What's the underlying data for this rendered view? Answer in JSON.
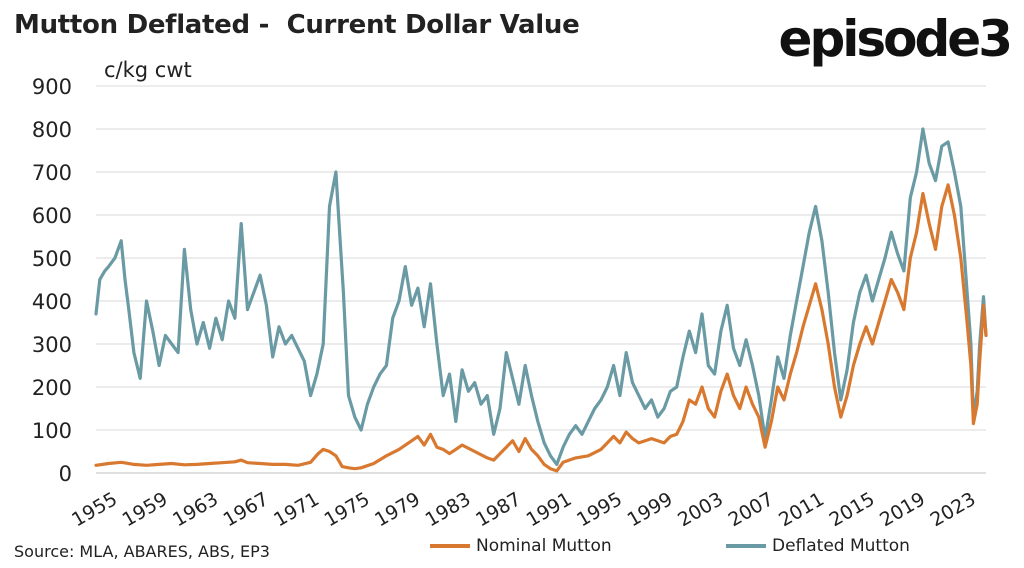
{
  "header": {
    "title": "Mutton Deflated -  Current Dollar Value",
    "logo_text": "episode3"
  },
  "footer": {
    "source": "Source: MLA, ABARES, ABS, EP3"
  },
  "colors": {
    "nominal": "#d9792f",
    "deflated": "#6a9aa4",
    "grid": "#d9d9d9",
    "text": "#222222"
  },
  "chart_data": {
    "type": "line",
    "ylabel": "c/kg cwt",
    "ylim": [
      0,
      900
    ],
    "yticks": [
      0,
      100,
      200,
      300,
      400,
      500,
      600,
      700,
      800,
      900
    ],
    "xlim": [
      1955,
      2025.5
    ],
    "xticks": [
      1955,
      1959,
      1963,
      1967,
      1971,
      1975,
      1979,
      1983,
      1987,
      1991,
      1995,
      1999,
      2003,
      2007,
      2011,
      2015,
      2019,
      2023
    ],
    "grid": "horizontal",
    "legend_position": "bottom",
    "series": [
      {
        "name": "Nominal Mutton",
        "color": "#d9792f",
        "points": [
          [
            1955.0,
            18
          ],
          [
            1956.0,
            22
          ],
          [
            1957.0,
            25
          ],
          [
            1958.0,
            20
          ],
          [
            1959.0,
            18
          ],
          [
            1960.0,
            20
          ],
          [
            1961.0,
            22
          ],
          [
            1962.0,
            19
          ],
          [
            1963.0,
            20
          ],
          [
            1964.0,
            22
          ],
          [
            1965.0,
            24
          ],
          [
            1966.0,
            26
          ],
          [
            1966.5,
            30
          ],
          [
            1967.0,
            24
          ],
          [
            1968.0,
            22
          ],
          [
            1969.0,
            20
          ],
          [
            1970.0,
            20
          ],
          [
            1971.0,
            18
          ],
          [
            1972.0,
            25
          ],
          [
            1972.6,
            45
          ],
          [
            1973.0,
            55
          ],
          [
            1973.5,
            50
          ],
          [
            1974.0,
            40
          ],
          [
            1974.5,
            15
          ],
          [
            1975.0,
            12
          ],
          [
            1975.5,
            10
          ],
          [
            1976.0,
            12
          ],
          [
            1977.0,
            22
          ],
          [
            1978.0,
            40
          ],
          [
            1979.0,
            55
          ],
          [
            1980.0,
            75
          ],
          [
            1980.5,
            85
          ],
          [
            1981.0,
            65
          ],
          [
            1981.5,
            90
          ],
          [
            1982.0,
            60
          ],
          [
            1982.5,
            55
          ],
          [
            1983.0,
            45
          ],
          [
            1983.5,
            55
          ],
          [
            1984.0,
            65
          ],
          [
            1985.0,
            50
          ],
          [
            1986.0,
            35
          ],
          [
            1986.5,
            30
          ],
          [
            1987.0,
            45
          ],
          [
            1987.5,
            60
          ],
          [
            1988.0,
            75
          ],
          [
            1988.5,
            50
          ],
          [
            1989.0,
            80
          ],
          [
            1989.5,
            55
          ],
          [
            1990.0,
            40
          ],
          [
            1990.5,
            20
          ],
          [
            1991.0,
            10
          ],
          [
            1991.5,
            5
          ],
          [
            1992.0,
            25
          ],
          [
            1993.0,
            35
          ],
          [
            1994.0,
            40
          ],
          [
            1995.0,
            55
          ],
          [
            1996.0,
            85
          ],
          [
            1996.5,
            70
          ],
          [
            1997.0,
            95
          ],
          [
            1997.5,
            80
          ],
          [
            1998.0,
            70
          ],
          [
            1999.0,
            80
          ],
          [
            2000.0,
            70
          ],
          [
            2000.5,
            85
          ],
          [
            2001.0,
            90
          ],
          [
            2001.5,
            120
          ],
          [
            2002.0,
            170
          ],
          [
            2002.5,
            160
          ],
          [
            2003.0,
            200
          ],
          [
            2003.5,
            150
          ],
          [
            2004.0,
            130
          ],
          [
            2004.5,
            190
          ],
          [
            2005.0,
            230
          ],
          [
            2005.5,
            180
          ],
          [
            2006.0,
            150
          ],
          [
            2006.5,
            200
          ],
          [
            2007.0,
            160
          ],
          [
            2007.5,
            130
          ],
          [
            2008.0,
            60
          ],
          [
            2008.5,
            120
          ],
          [
            2009.0,
            200
          ],
          [
            2009.5,
            170
          ],
          [
            2010.0,
            230
          ],
          [
            2010.5,
            280
          ],
          [
            2011.0,
            340
          ],
          [
            2011.5,
            390
          ],
          [
            2012.0,
            440
          ],
          [
            2012.5,
            380
          ],
          [
            2013.0,
            300
          ],
          [
            2013.5,
            200
          ],
          [
            2014.0,
            130
          ],
          [
            2014.5,
            180
          ],
          [
            2015.0,
            250
          ],
          [
            2015.5,
            300
          ],
          [
            2016.0,
            340
          ],
          [
            2016.5,
            300
          ],
          [
            2017.0,
            350
          ],
          [
            2017.5,
            400
          ],
          [
            2018.0,
            450
          ],
          [
            2018.5,
            420
          ],
          [
            2019.0,
            380
          ],
          [
            2019.5,
            500
          ],
          [
            2020.0,
            560
          ],
          [
            2020.5,
            650
          ],
          [
            2021.0,
            580
          ],
          [
            2021.5,
            520
          ],
          [
            2022.0,
            620
          ],
          [
            2022.5,
            670
          ],
          [
            2023.0,
            600
          ],
          [
            2023.5,
            500
          ],
          [
            2024.0,
            350
          ],
          [
            2024.3,
            250
          ],
          [
            2024.5,
            115
          ],
          [
            2024.8,
            160
          ],
          [
            2025.0,
            260
          ],
          [
            2025.3,
            390
          ],
          [
            2025.5,
            320
          ]
        ]
      },
      {
        "name": "Deflated Mutton",
        "color": "#6a9aa4",
        "points": [
          [
            1955.0,
            370
          ],
          [
            1955.3,
            450
          ],
          [
            1955.7,
            470
          ],
          [
            1956.0,
            480
          ],
          [
            1956.5,
            500
          ],
          [
            1957.0,
            540
          ],
          [
            1957.3,
            450
          ],
          [
            1957.6,
            380
          ],
          [
            1958.0,
            280
          ],
          [
            1958.5,
            220
          ],
          [
            1959.0,
            400
          ],
          [
            1959.5,
            330
          ],
          [
            1960.0,
            250
          ],
          [
            1960.5,
            320
          ],
          [
            1961.0,
            300
          ],
          [
            1961.5,
            280
          ],
          [
            1962.0,
            520
          ],
          [
            1962.5,
            380
          ],
          [
            1963.0,
            300
          ],
          [
            1963.5,
            350
          ],
          [
            1964.0,
            290
          ],
          [
            1964.5,
            360
          ],
          [
            1965.0,
            310
          ],
          [
            1965.5,
            400
          ],
          [
            1966.0,
            360
          ],
          [
            1966.5,
            580
          ],
          [
            1967.0,
            380
          ],
          [
            1967.5,
            420
          ],
          [
            1968.0,
            460
          ],
          [
            1968.5,
            390
          ],
          [
            1969.0,
            270
          ],
          [
            1969.5,
            340
          ],
          [
            1970.0,
            300
          ],
          [
            1970.5,
            320
          ],
          [
            1971.0,
            290
          ],
          [
            1971.5,
            260
          ],
          [
            1972.0,
            180
          ],
          [
            1972.5,
            230
          ],
          [
            1973.0,
            300
          ],
          [
            1973.5,
            620
          ],
          [
            1974.0,
            700
          ],
          [
            1974.3,
            560
          ],
          [
            1974.6,
            420
          ],
          [
            1975.0,
            180
          ],
          [
            1975.5,
            130
          ],
          [
            1976.0,
            100
          ],
          [
            1976.5,
            160
          ],
          [
            1977.0,
            200
          ],
          [
            1977.5,
            230
          ],
          [
            1978.0,
            250
          ],
          [
            1978.5,
            360
          ],
          [
            1979.0,
            400
          ],
          [
            1979.5,
            480
          ],
          [
            1980.0,
            390
          ],
          [
            1980.5,
            430
          ],
          [
            1981.0,
            340
          ],
          [
            1981.5,
            440
          ],
          [
            1982.0,
            300
          ],
          [
            1982.5,
            180
          ],
          [
            1983.0,
            230
          ],
          [
            1983.5,
            120
          ],
          [
            1984.0,
            240
          ],
          [
            1984.5,
            190
          ],
          [
            1985.0,
            210
          ],
          [
            1985.5,
            160
          ],
          [
            1986.0,
            180
          ],
          [
            1986.5,
            90
          ],
          [
            1987.0,
            150
          ],
          [
            1987.5,
            280
          ],
          [
            1988.0,
            220
          ],
          [
            1988.5,
            160
          ],
          [
            1989.0,
            250
          ],
          [
            1989.5,
            180
          ],
          [
            1990.0,
            120
          ],
          [
            1990.5,
            70
          ],
          [
            1991.0,
            40
          ],
          [
            1991.5,
            20
          ],
          [
            1992.0,
            60
          ],
          [
            1992.5,
            90
          ],
          [
            1993.0,
            110
          ],
          [
            1993.5,
            90
          ],
          [
            1994.0,
            120
          ],
          [
            1994.5,
            150
          ],
          [
            1995.0,
            170
          ],
          [
            1995.5,
            200
          ],
          [
            1996.0,
            250
          ],
          [
            1996.5,
            180
          ],
          [
            1997.0,
            280
          ],
          [
            1997.5,
            210
          ],
          [
            1998.0,
            180
          ],
          [
            1998.5,
            150
          ],
          [
            1999.0,
            170
          ],
          [
            1999.5,
            130
          ],
          [
            2000.0,
            150
          ],
          [
            2000.5,
            190
          ],
          [
            2001.0,
            200
          ],
          [
            2001.5,
            270
          ],
          [
            2002.0,
            330
          ],
          [
            2002.5,
            280
          ],
          [
            2003.0,
            370
          ],
          [
            2003.5,
            250
          ],
          [
            2004.0,
            230
          ],
          [
            2004.5,
            330
          ],
          [
            2005.0,
            390
          ],
          [
            2005.5,
            290
          ],
          [
            2006.0,
            250
          ],
          [
            2006.5,
            310
          ],
          [
            2007.0,
            250
          ],
          [
            2007.5,
            180
          ],
          [
            2008.0,
            80
          ],
          [
            2008.5,
            170
          ],
          [
            2009.0,
            270
          ],
          [
            2009.5,
            220
          ],
          [
            2010.0,
            320
          ],
          [
            2010.5,
            400
          ],
          [
            2011.0,
            480
          ],
          [
            2011.5,
            560
          ],
          [
            2012.0,
            620
          ],
          [
            2012.5,
            540
          ],
          [
            2013.0,
            420
          ],
          [
            2013.5,
            280
          ],
          [
            2014.0,
            170
          ],
          [
            2014.5,
            240
          ],
          [
            2015.0,
            350
          ],
          [
            2015.5,
            420
          ],
          [
            2016.0,
            460
          ],
          [
            2016.5,
            400
          ],
          [
            2017.0,
            450
          ],
          [
            2017.5,
            500
          ],
          [
            2018.0,
            560
          ],
          [
            2018.5,
            510
          ],
          [
            2019.0,
            470
          ],
          [
            2019.5,
            640
          ],
          [
            2020.0,
            700
          ],
          [
            2020.5,
            800
          ],
          [
            2021.0,
            720
          ],
          [
            2021.5,
            680
          ],
          [
            2022.0,
            760
          ],
          [
            2022.5,
            770
          ],
          [
            2023.0,
            700
          ],
          [
            2023.5,
            620
          ],
          [
            2024.0,
            420
          ],
          [
            2024.3,
            300
          ],
          [
            2024.5,
            130
          ],
          [
            2024.8,
            190
          ],
          [
            2025.0,
            300
          ],
          [
            2025.3,
            410
          ],
          [
            2025.5,
            320
          ]
        ]
      }
    ]
  }
}
